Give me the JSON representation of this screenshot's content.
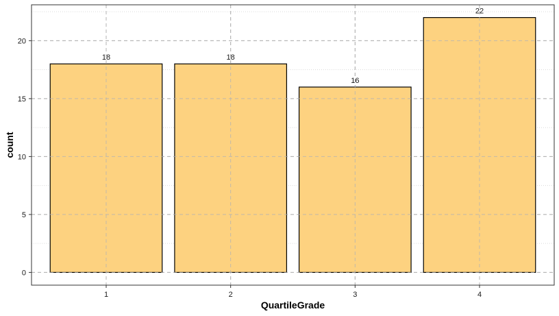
{
  "chart_data": {
    "type": "bar",
    "title": "",
    "xlabel": "QuartileGrade",
    "ylabel": "count",
    "categories": [
      "1",
      "2",
      "3",
      "4"
    ],
    "values": [
      18,
      18,
      16,
      22
    ],
    "data_labels": [
      "18",
      "18",
      "16",
      "22"
    ],
    "y_ticks": [
      0,
      5,
      10,
      15,
      20
    ],
    "y_tick_labels": [
      "0",
      "5",
      "10",
      "15",
      "20"
    ],
    "ylim": [
      -1.1,
      23.1
    ],
    "grid": true,
    "legend": "none",
    "colors": {
      "bar_fill": "#fdd280",
      "bar_stroke": "#000000",
      "grid_major": "#b3b3b3",
      "grid_minor": "#d9d9d9",
      "panel_border": "#333333"
    }
  }
}
